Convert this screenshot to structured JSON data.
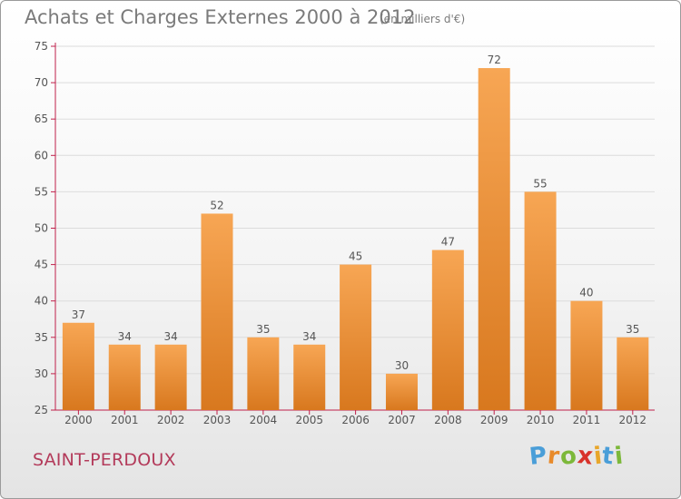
{
  "header": {
    "title": "Achats et Charges Externes 2000 à 2012",
    "subtitle": "(en milliers d'€)"
  },
  "footer": {
    "place": "SAINT-PERDOUX",
    "brand_letters": [
      {
        "ch": "P",
        "color": "#4a9ed8"
      },
      {
        "ch": "r",
        "color": "#e88a2a"
      },
      {
        "ch": "o",
        "color": "#7cb83a"
      },
      {
        "ch": "x",
        "color": "#d8322a"
      },
      {
        "ch": "i",
        "color": "#e8a62a"
      },
      {
        "ch": "t",
        "color": "#4a9ed8"
      },
      {
        "ch": "i",
        "color": "#7cb83a"
      }
    ]
  },
  "chart_data": {
    "type": "bar",
    "categories": [
      "2000",
      "2001",
      "2002",
      "2003",
      "2004",
      "2005",
      "2006",
      "2007",
      "2008",
      "2009",
      "2010",
      "2011",
      "2012"
    ],
    "values": [
      37,
      34,
      34,
      52,
      35,
      34,
      45,
      30,
      47,
      72,
      55,
      40,
      35
    ],
    "ylim": [
      25,
      75
    ],
    "yticks": [
      25,
      30,
      35,
      40,
      45,
      50,
      55,
      60,
      65,
      70,
      75
    ],
    "grid": true,
    "bar_color": "#f0962e",
    "axis_color": "#c0204a"
  }
}
